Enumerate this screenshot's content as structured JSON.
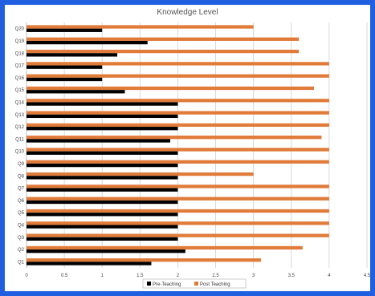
{
  "chart_data": {
    "type": "bar",
    "orientation": "horizontal",
    "title": "Knowledge Level",
    "categories": [
      "Q1",
      "Q2",
      "Q3",
      "Q4",
      "Q5",
      "Q6",
      "Q7",
      "Q8",
      "Q9",
      "Q10",
      "Q11",
      "Q12",
      "Q13",
      "Q14",
      "Q15",
      "Q16",
      "Q17",
      "Q18",
      "Q19",
      "Q20"
    ],
    "series": [
      {
        "name": "Pre-Teaching",
        "color": "#000000",
        "values": [
          1.65,
          2.1,
          2.0,
          2.0,
          2.0,
          2.0,
          2.0,
          2.0,
          2.0,
          2.0,
          1.9,
          2.0,
          2.0,
          2.0,
          1.3,
          1.0,
          1.0,
          1.2,
          1.6,
          1.0
        ]
      },
      {
        "name": "Post Teaching",
        "color": "#e07b3a",
        "values": [
          3.1,
          3.65,
          4.0,
          4.0,
          4.0,
          4.0,
          4.0,
          3.0,
          4.0,
          4.0,
          3.9,
          4.0,
          4.0,
          4.0,
          3.8,
          4.0,
          4.0,
          3.6,
          3.6,
          3.0
        ]
      }
    ],
    "xlim": [
      0,
      4.5
    ],
    "xticks": [
      "0",
      "0.5",
      "1",
      "1.5",
      "2",
      "2.5",
      "3",
      "3.5",
      "4",
      "4.5"
    ],
    "grid": true,
    "legend": "bottom"
  }
}
